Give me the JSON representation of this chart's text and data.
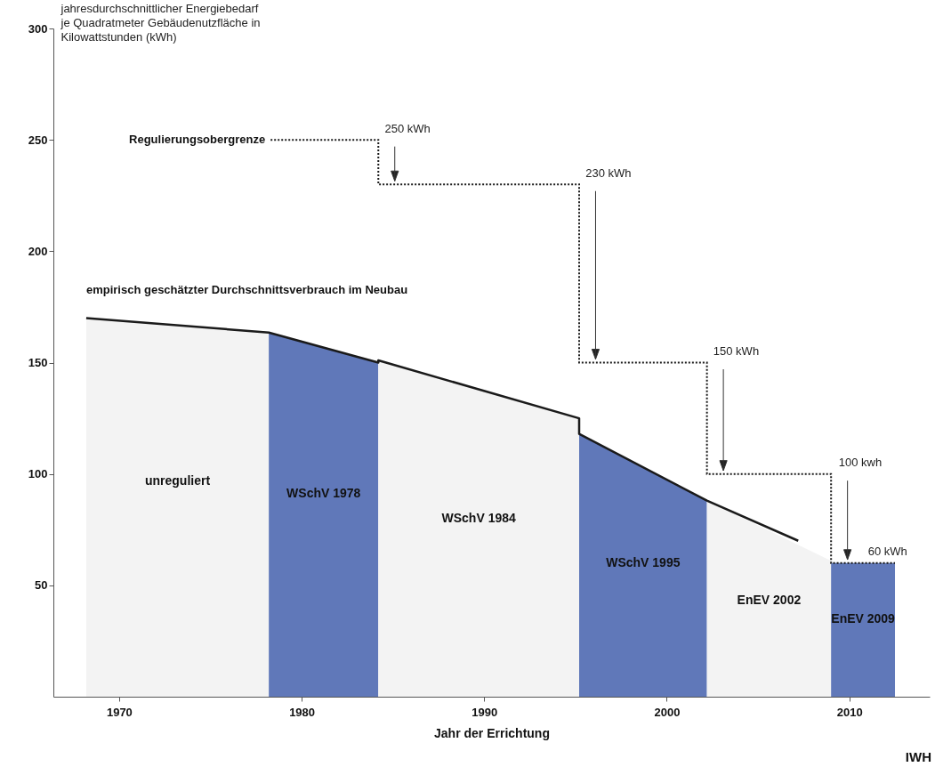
{
  "chart_data": {
    "type": "area",
    "xlabel": "Jahr der Errichtung",
    "ylabel": "jahresdurchschnittlicher Energiebedarf\nje Quadratmeter Gebäudenutzfläche in\nKilowattstunden (kWh)",
    "xlim": [
      1966.4,
      2014.4
    ],
    "xticks": [
      1970,
      1980,
      1990,
      2000,
      2010
    ],
    "ylim": [
      0,
      300
    ],
    "yticks": [
      50,
      100,
      150,
      200,
      250,
      300
    ],
    "series": [
      {
        "name": "unreguliert",
        "color": "#f3f3f3",
        "x": [
          1968.2,
          1978.2
        ],
        "values": [
          170,
          163.5
        ]
      },
      {
        "name": "WSchV 1978",
        "color": "#6078b9",
        "x": [
          1978.2,
          1984.2
        ],
        "values": [
          163.5,
          150
        ]
      },
      {
        "name": "WSchV 1984",
        "color": "#f3f3f3",
        "x": [
          1984.2,
          1995.2
        ],
        "values": [
          151,
          125
        ]
      },
      {
        "name": "WSchV 1995",
        "color": "#6078b9",
        "x": [
          1995.2,
          2002.2
        ],
        "values": [
          118,
          88
        ]
      },
      {
        "name": "EnEV 2002",
        "color": "#f3f3f3",
        "x": [
          2002.2,
          2009.0
        ],
        "values": [
          88,
          61
        ]
      },
      {
        "name": "EnEV 2009",
        "color": "#6078b9",
        "x": [
          2009.0,
          2012.5
        ],
        "values": [
          60,
          60
        ]
      },
      {
        "type": "line",
        "name": "empirisch geschätzter Durchschnittsverbrauch im Neubau",
        "color": "#1a1a1a",
        "x": [
          1968.2,
          1978.2,
          1984.2,
          1984.2,
          1995.2,
          1995.2,
          2002.2,
          2007.2
        ],
        "values": [
          170,
          163.5,
          150,
          151,
          125,
          118,
          88,
          70
        ]
      },
      {
        "type": "step",
        "name": "Regulierungsobergrenze",
        "color": "#1a1a1a",
        "line_style": "dotted",
        "x": [
          1978.3,
          1984.2,
          1995.2,
          2002.2,
          2009.0,
          2012.5
        ],
        "values": [
          250,
          230,
          150,
          100,
          60,
          60
        ]
      }
    ],
    "annotations": [
      {
        "text": "250 kWh",
        "x": 1984.2,
        "y": 250
      },
      {
        "text": "230 kWh",
        "x": 1995.2,
        "y": 230
      },
      {
        "text": "150 kWh",
        "x": 2002.2,
        "y": 150
      },
      {
        "text": "100 kwh",
        "x": 2009.0,
        "y": 100
      },
      {
        "text": "60 kWh",
        "x": 2012.5,
        "y": 60
      },
      "IWH"
    ]
  }
}
